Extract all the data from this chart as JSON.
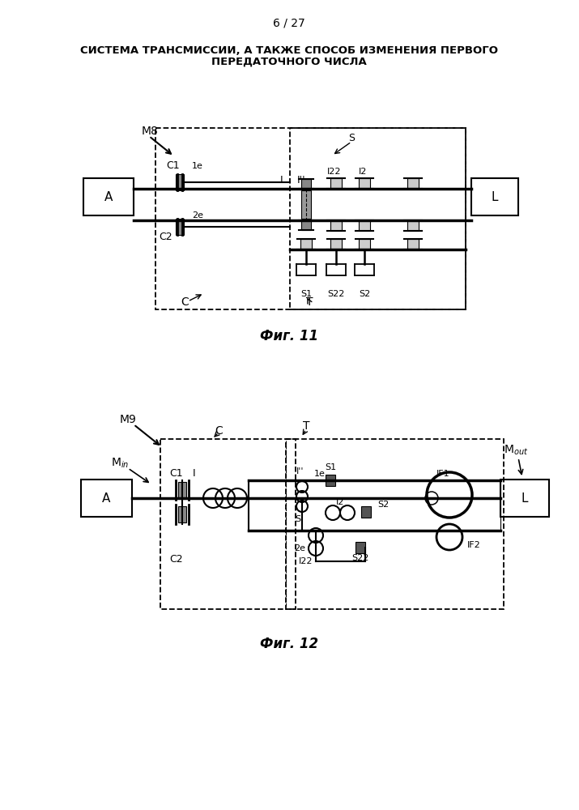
{
  "page_num": "6 / 27",
  "title_line1": "СИСТЕМА ТРАНСМИССИИ, А ТАКЖЕ СПОСОБ ИЗМЕНЕНИЯ ПЕРВОГО",
  "title_line2": "ПЕРЕДАТОЧНОГО ЧИСЛА",
  "fig11_caption": "Фиг. 11",
  "fig12_caption": "Фиг. 12",
  "bg_color": "#ffffff",
  "line_color": "#000000"
}
